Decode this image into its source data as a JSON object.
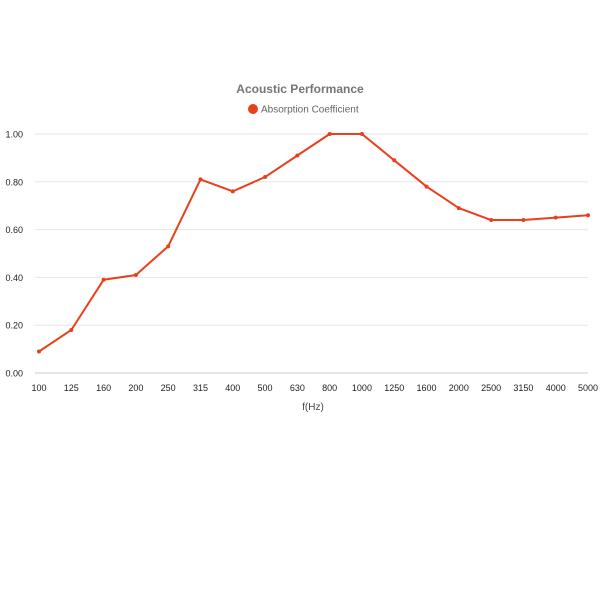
{
  "chart_data": {
    "type": "line",
    "title": "Acoustic Performance",
    "xlabel": "f(Hz)",
    "ylabel": "",
    "legend_position": "top",
    "grid": true,
    "ylim": [
      0,
      1
    ],
    "y_ticks": [
      "0.00",
      "0.20",
      "0.40",
      "0.60",
      "0.80",
      "1.00"
    ],
    "categories": [
      "100",
      "125",
      "160",
      "200",
      "250",
      "315",
      "400",
      "500",
      "630",
      "800",
      "1000",
      "1250",
      "1600",
      "2000",
      "2500",
      "3150",
      "4000",
      "5000"
    ],
    "series": [
      {
        "name": "Absorption Coefficient",
        "color": "#e8401c",
        "values": [
          0.09,
          0.18,
          0.39,
          0.41,
          0.53,
          0.81,
          0.76,
          0.82,
          0.91,
          1.0,
          1.0,
          0.89,
          0.78,
          0.69,
          0.64,
          0.64,
          0.65,
          0.66
        ]
      }
    ]
  }
}
